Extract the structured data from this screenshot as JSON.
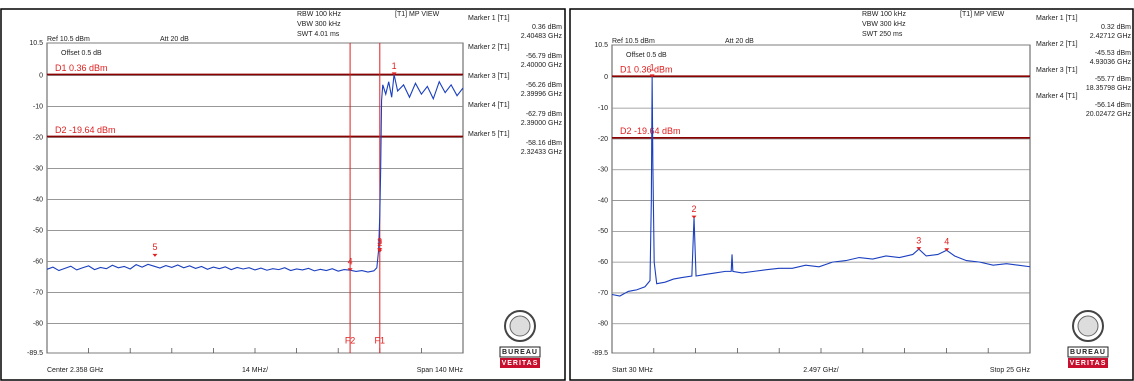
{
  "chart_data": [
    {
      "type": "line",
      "header": {
        "rbw": "RBW 100 kHz",
        "vbw": "VBW 300 kHz",
        "swt": "SWT 4.01 ms",
        "mode": "[T1] MP VIEW",
        "ref": "Ref 10.5 dBm",
        "att": "Att 20 dB",
        "offset": "Offset 0.5 dB"
      },
      "footer": [
        "Center 2.358 GHz",
        "14 MHz/",
        "Span 140 MHz"
      ],
      "logo": [
        "BUREAU",
        "VERITAS"
      ],
      "xlim": [
        2.288,
        2.428
      ],
      "xticks": [
        2.288,
        2.302,
        2.316,
        2.33,
        2.344,
        2.358,
        2.372,
        2.386,
        2.4,
        2.414,
        2.428
      ],
      "ylim": [
        -89.5,
        10.5
      ],
      "yticks": [
        10.5,
        0,
        -10,
        -20,
        -30,
        -40,
        -50,
        -60,
        -70,
        -80,
        -89.5
      ],
      "color": "#1a3fc0",
      "x": [
        2.288,
        2.29,
        2.292,
        2.294,
        2.296,
        2.298,
        2.3,
        2.302,
        2.304,
        2.306,
        2.308,
        2.31,
        2.312,
        2.314,
        2.316,
        2.318,
        2.32,
        2.322,
        2.324,
        2.326,
        2.328,
        2.33,
        2.332,
        2.334,
        2.336,
        2.338,
        2.34,
        2.342,
        2.344,
        2.346,
        2.348,
        2.35,
        2.352,
        2.354,
        2.356,
        2.358,
        2.36,
        2.362,
        2.364,
        2.366,
        2.368,
        2.37,
        2.372,
        2.374,
        2.376,
        2.378,
        2.38,
        2.382,
        2.384,
        2.386,
        2.388,
        2.39,
        2.392,
        2.394,
        2.396,
        2.398,
        2.399,
        2.3996,
        2.4,
        2.4003,
        2.4006,
        2.401,
        2.402,
        2.403,
        2.404,
        2.4048,
        2.406,
        2.408,
        2.41,
        2.412,
        2.414,
        2.416,
        2.418,
        2.42,
        2.422,
        2.424,
        2.426,
        2.428
      ],
      "values": [
        -62.5,
        -61.8,
        -62.9,
        -62.2,
        -61.5,
        -62.7,
        -62.0,
        -61.4,
        -62.6,
        -61.9,
        -62.3,
        -61.2,
        -62.0,
        -61.6,
        -62.4,
        -61.0,
        -61.8,
        -60.9,
        -61.5,
        -62.1,
        -61.3,
        -61.9,
        -61.1,
        -62.0,
        -61.4,
        -62.2,
        -61.6,
        -62.5,
        -61.8,
        -62.3,
        -61.7,
        -62.6,
        -61.9,
        -62.4,
        -62.0,
        -62.7,
        -62.1,
        -62.8,
        -62.3,
        -62.6,
        -62.0,
        -62.9,
        -62.4,
        -62.7,
        -62.2,
        -63.0,
        -62.5,
        -62.9,
        -62.3,
        -63.1,
        -62.6,
        -62.8,
        -63.2,
        -62.9,
        -63.4,
        -63.0,
        -62.0,
        -56.3,
        -45,
        -30,
        -8,
        -3,
        -6,
        -2,
        -7,
        0.36,
        -5,
        -3,
        -7,
        -2.5,
        -6,
        -3.5,
        -7.5,
        -2,
        -5.5,
        -3,
        -6.5,
        -4
      ],
      "hlines": [
        {
          "label": "D1 0.36 dBm",
          "value": 0.36
        },
        {
          "label": "D2 -19.64 dBm",
          "value": -19.64
        }
      ],
      "vlines": [
        {
          "label": "F2",
          "value": 2.39
        },
        {
          "label": "F1",
          "value": 2.4
        }
      ],
      "markers": [
        {
          "name": "Marker 1 [T1]",
          "tag": "1",
          "x": 2.40483,
          "y": 0.36,
          "x_label": "2.40483 GHz",
          "y_label": "0.36 dBm"
        },
        {
          "name": "Marker 2 [T1]",
          "tag": "2",
          "x": 2.4,
          "y": -56.79,
          "x_label": "2.40000 GHz",
          "y_label": "-56.79 dBm"
        },
        {
          "name": "Marker 3 [T1]",
          "tag": "3",
          "x": 2.39996,
          "y": -56.26,
          "x_label": "2.39996 GHz",
          "y_label": "-56.26 dBm"
        },
        {
          "name": "Marker 4 [T1]",
          "tag": "4",
          "x": 2.39,
          "y": -62.79,
          "x_label": "2.39000 GHz",
          "y_label": "-62.79 dBm"
        },
        {
          "name": "Marker 5 [T1]",
          "tag": "5",
          "x": 2.32433,
          "y": -58.16,
          "x_label": "2.32433 GHz",
          "y_label": "-58.16 dBm"
        }
      ]
    },
    {
      "type": "line",
      "header": {
        "rbw": "RBW 100 kHz",
        "vbw": "VBW 300 kHz",
        "swt": "SWT 250 ms",
        "mode": "[T1] MP VIEW",
        "ref": "Ref 10.5 dBm",
        "att": "Att 20 dB",
        "offset": "Offset 0.5 dB"
      },
      "footer": [
        "Start 30 MHz",
        "2.497 GHz/",
        "Stop 25 GHz"
      ],
      "logo": [
        "BUREAU",
        "VERITAS"
      ],
      "xlim": [
        0.03,
        25
      ],
      "xticks": [
        0.03,
        2.527,
        5.024,
        7.521,
        10.018,
        12.515,
        15.012,
        17.509,
        20.006,
        22.503,
        25
      ],
      "ylim": [
        -89.5,
        10.5
      ],
      "yticks": [
        10.5,
        0,
        -10,
        -20,
        -30,
        -40,
        -50,
        -60,
        -70,
        -80,
        -89.5
      ],
      "color": "#1a3fc0",
      "x": [
        0.03,
        0.5,
        1.0,
        1.5,
        2.0,
        2.3,
        2.38,
        2.427,
        2.47,
        2.55,
        2.7,
        3.2,
        3.7,
        4.2,
        4.8,
        4.93,
        5.05,
        5.6,
        6.2,
        6.8,
        7.15,
        7.2,
        7.25,
        7.8,
        8.5,
        9.2,
        10,
        10.8,
        11.6,
        12.4,
        13.2,
        14,
        14.8,
        15.6,
        16.4,
        17.2,
        18,
        18.36,
        18.8,
        19.5,
        20.02,
        20.5,
        21.2,
        22,
        22.8,
        23.6,
        24.3,
        25
      ],
      "values": [
        -70.5,
        -71,
        -69.5,
        -69,
        -68,
        -66,
        -40,
        0.32,
        -28,
        -60,
        -67,
        -66.5,
        -65.5,
        -65,
        -64.5,
        -45.53,
        -64.5,
        -64,
        -63.5,
        -63,
        -63,
        -57.5,
        -63,
        -63.5,
        -63,
        -62.5,
        -62,
        -62,
        -61,
        -61.5,
        -60,
        -59.5,
        -58.5,
        -59,
        -58,
        -58.5,
        -57.5,
        -55.77,
        -58,
        -57.5,
        -56.14,
        -58,
        -59.5,
        -60,
        -61,
        -60.5,
        -61,
        -61.5
      ],
      "hlines": [
        {
          "label": "D1 0.36 dBm",
          "value": 0.36
        },
        {
          "label": "D2 -19.64 dBm",
          "value": -19.64
        }
      ],
      "vlines": [],
      "markers": [
        {
          "name": "Marker 1 [T1]",
          "tag": "1",
          "x": 2.42712,
          "y": 0.32,
          "x_label": "2.42712 GHz",
          "y_label": "0.32 dBm"
        },
        {
          "name": "Marker 2 [T1]",
          "tag": "2",
          "x": 4.93036,
          "y": -45.53,
          "x_label": "4.93036 GHz",
          "y_label": "-45.53 dBm"
        },
        {
          "name": "Marker 3 [T1]",
          "tag": "3",
          "x": 18.35798,
          "y": -55.77,
          "x_label": "18.35798 GHz",
          "y_label": "-55.77 dBm"
        },
        {
          "name": "Marker 4 [T1]",
          "tag": "4",
          "x": 20.02472,
          "y": -56.14,
          "x_label": "20.02472 GHz",
          "y_label": "-56.14 dBm"
        }
      ]
    }
  ]
}
